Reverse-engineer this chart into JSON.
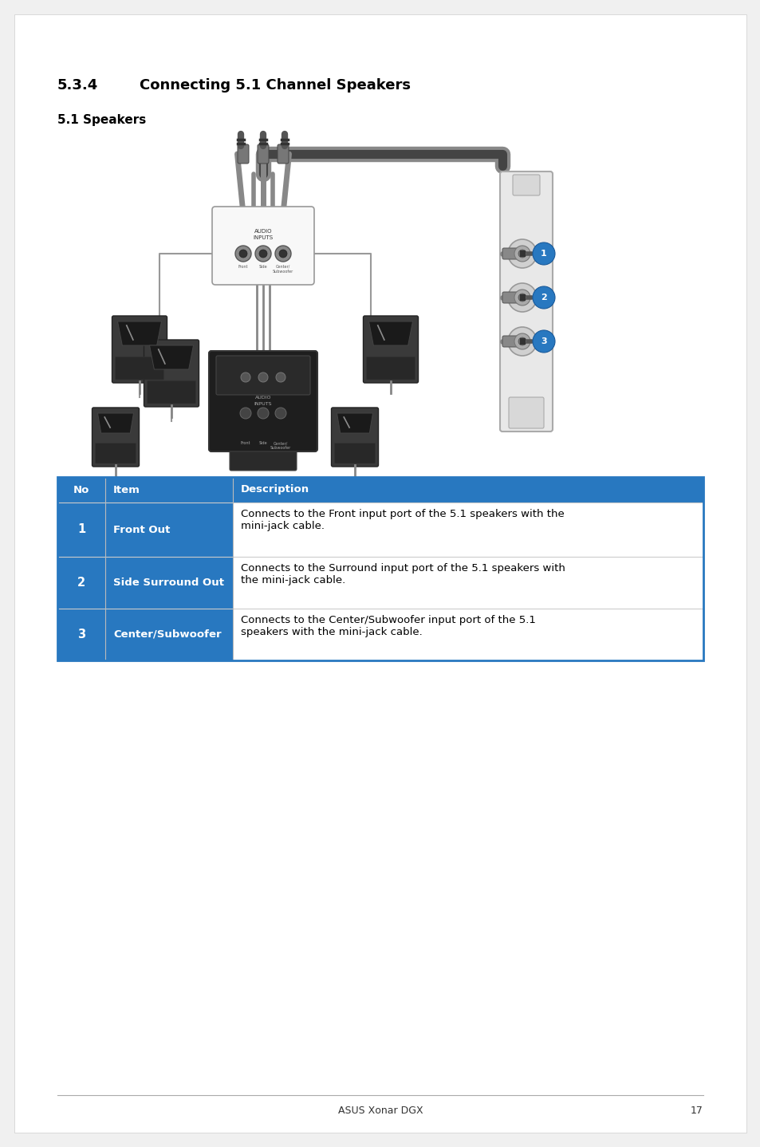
{
  "title_num": "5.3.4",
  "title_text": "Connecting 5.1 Channel Speakers",
  "subtitle": "5.1 Speakers",
  "bg_color": "#f0f0f0",
  "page_bg": "#ffffff",
  "header_color": "#2878c0",
  "header_text_color": "#ffffff",
  "table_border_color": "#2878c0",
  "table_inner_color": "#bbbbbb",
  "footer_text": "ASUS Xonar DGX",
  "footer_page": "17",
  "table_headers": [
    "No",
    "Item",
    "Description"
  ],
  "table_rows": [
    [
      "1",
      "Front Out",
      "Connects to the Front input port of the 5.1 speakers with the\nmini-jack cable."
    ],
    [
      "2",
      "Side Surround Out",
      "Connects to the Surround input port of the 5.1 speakers with\nthe mini-jack cable."
    ],
    [
      "3",
      "Center/Subwoofer",
      "Connects to the Center/Subwoofer input port of the 5.1\nspeakers with the mini-jack cable."
    ]
  ],
  "title_fontsize": 13,
  "subtitle_fontsize": 11,
  "body_fontsize": 9.5,
  "header_fontsize": 9.5
}
